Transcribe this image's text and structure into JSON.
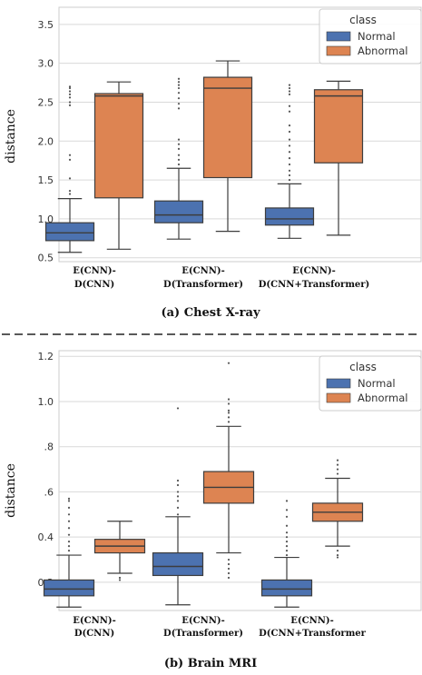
{
  "colors": {
    "normal": "#4c72b0",
    "abnormal": "#dd8452",
    "line": "#3d3d3d",
    "grid": "#d9d9d9"
  },
  "chart_data": [
    {
      "type": "box",
      "caption": "(a) Chest X-ray",
      "ylabel": "distance",
      "ylim": [
        0.45,
        3.72
      ],
      "yticks": [
        "0.5",
        "1.0",
        "1.5",
        "2.0",
        "2.5",
        "3.0",
        "3.5"
      ],
      "grid": true,
      "legend": {
        "title": "class",
        "position": "top-right",
        "entries": [
          "Normal",
          "Abnormal"
        ]
      },
      "categories": [
        [
          "E(CNN)-",
          "D(CNN)"
        ],
        [
          "E(CNN)-",
          "D(Transformer)"
        ],
        [
          "E(CNN)-",
          "D(CNN+Transformer)"
        ]
      ],
      "series": [
        {
          "name": "Normal",
          "boxes": [
            {
              "whislo": 0.57,
              "q1": 0.72,
              "med": 0.82,
              "q3": 0.95,
              "whishi": 1.26,
              "fliers": [
                1.32,
                1.36,
                1.52,
                1.76,
                1.82,
                2.46,
                2.5,
                2.56,
                2.6,
                2.64,
                2.68,
                2.7
              ]
            },
            {
              "whislo": 0.74,
              "q1": 0.95,
              "med": 1.05,
              "q3": 1.23,
              "whishi": 1.65,
              "fliers": [
                1.7,
                1.76,
                1.82,
                1.9,
                1.96,
                2.02,
                2.42,
                2.48,
                2.55,
                2.62,
                2.68,
                2.72,
                2.76,
                2.8
              ]
            },
            {
              "whislo": 0.75,
              "q1": 0.92,
              "med": 1.0,
              "q3": 1.14,
              "whishi": 1.45,
              "fliers": [
                1.5,
                1.56,
                1.62,
                1.7,
                1.78,
                1.86,
                1.94,
                2.02,
                2.12,
                2.2,
                2.38,
                2.45,
                2.6,
                2.64,
                2.68,
                2.72
              ]
            }
          ]
        },
        {
          "name": "Abnormal",
          "boxes": [
            {
              "whislo": 0.61,
              "q1": 1.27,
              "med": 2.58,
              "q3": 2.61,
              "whishi": 2.76,
              "fliers": []
            },
            {
              "whislo": 0.84,
              "q1": 1.53,
              "med": 2.68,
              "q3": 2.82,
              "whishi": 3.03,
              "fliers": []
            },
            {
              "whislo": 0.79,
              "q1": 1.72,
              "med": 2.58,
              "q3": 2.66,
              "whishi": 2.77,
              "fliers": []
            }
          ]
        }
      ]
    },
    {
      "type": "box",
      "caption": "(b) Brain MRI",
      "ylabel": "distance",
      "ylim": [
        0.075,
        1.225
      ],
      "yticks": [
        "0.2",
        "0.4",
        ".6",
        ".8",
        "1.0",
        "1.2"
      ],
      "grid": true,
      "legend": {
        "title": "class",
        "position": "top-right",
        "entries": [
          "Normal",
          "Abnormal"
        ]
      },
      "categories": [
        [
          "E(CNN)-",
          "D(CNN)"
        ],
        [
          "E(CNN)-",
          "D(Transformer)"
        ],
        [
          "E(CNN)-",
          "D(CNN+Transformer"
        ]
      ],
      "series": [
        {
          "name": "Normal",
          "boxes": [
            {
              "whislo": 0.09,
              "q1": 0.14,
              "med": 0.17,
              "q3": 0.21,
              "whishi": 0.32,
              "fliers": [
                0.34,
                0.36,
                0.38,
                0.41,
                0.44,
                0.47,
                0.5,
                0.53,
                0.56,
                0.57
              ]
            },
            {
              "whislo": 0.1,
              "q1": 0.23,
              "med": 0.27,
              "q3": 0.33,
              "whishi": 0.49,
              "fliers": [
                0.5,
                0.53,
                0.56,
                0.58,
                0.6,
                0.63,
                0.65,
                0.97
              ]
            },
            {
              "whislo": 0.09,
              "q1": 0.14,
              "med": 0.17,
              "q3": 0.21,
              "whishi": 0.31,
              "fliers": [
                0.32,
                0.34,
                0.36,
                0.38,
                0.4,
                0.42,
                0.45,
                0.49,
                0.52,
                0.56
              ]
            }
          ]
        },
        {
          "name": "Abnormal",
          "boxes": [
            {
              "whislo": 0.24,
              "q1": 0.33,
              "med": 0.36,
              "q3": 0.39,
              "whishi": 0.47,
              "fliers": [
                0.21,
                0.22
              ]
            },
            {
              "whislo": 0.33,
              "q1": 0.55,
              "med": 0.62,
              "q3": 0.69,
              "whishi": 0.89,
              "fliers": [
                0.22,
                0.24,
                0.26,
                0.28,
                0.3,
                0.91,
                0.93,
                0.95,
                0.96,
                0.99,
                1.01,
                1.17
              ]
            },
            {
              "whislo": 0.36,
              "q1": 0.47,
              "med": 0.51,
              "q3": 0.55,
              "whishi": 0.66,
              "fliers": [
                0.31,
                0.32,
                0.34,
                0.68,
                0.7,
                0.72,
                0.74
              ]
            }
          ]
        }
      ]
    }
  ]
}
